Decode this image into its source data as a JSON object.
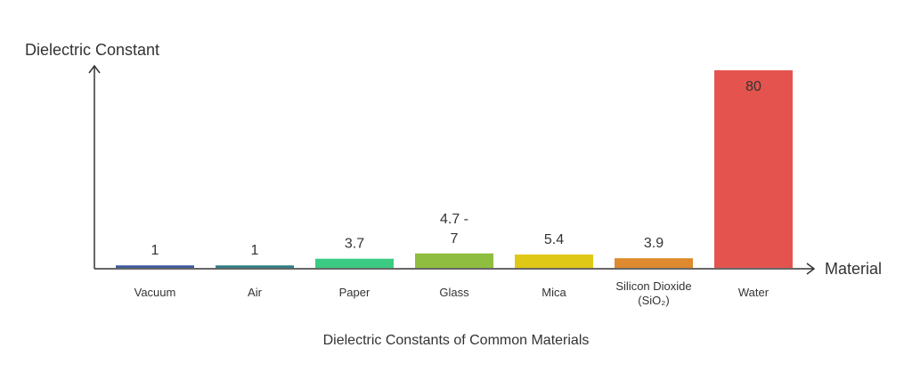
{
  "chart_data": {
    "type": "bar",
    "title": "Dielectric Constants of Common Materials",
    "xlabel": "Material",
    "ylabel": "Dielectric Constant",
    "ylim": [
      0,
      80
    ],
    "grid": false,
    "categories": [
      "Vacuum",
      "Air",
      "Paper",
      "Glass",
      "Mica",
      "Silicon Dioxide (SiO₂)",
      "Water"
    ],
    "category_label_lines": [
      [
        "Vacuum"
      ],
      [
        "Air"
      ],
      [
        "Paper"
      ],
      [
        "Glass"
      ],
      [
        "Mica"
      ],
      [
        "Silicon Dioxide",
        "(SiO₂)"
      ],
      [
        "Water"
      ]
    ],
    "values": [
      1,
      1,
      3.7,
      5.85,
      5.4,
      3.9,
      80
    ],
    "value_labels": [
      [
        "1"
      ],
      [
        "1"
      ],
      [
        "3.7"
      ],
      [
        "4.7 -",
        "7"
      ],
      [
        "5.4"
      ],
      [
        "3.9"
      ],
      [
        "80"
      ]
    ],
    "value_label_inside": [
      false,
      false,
      false,
      false,
      false,
      false,
      true
    ],
    "colors": [
      "#3e5a9e",
      "#2f7f85",
      "#3ccb82",
      "#8fbd3f",
      "#e0c816",
      "#df8a2e",
      "#e5534f"
    ]
  }
}
